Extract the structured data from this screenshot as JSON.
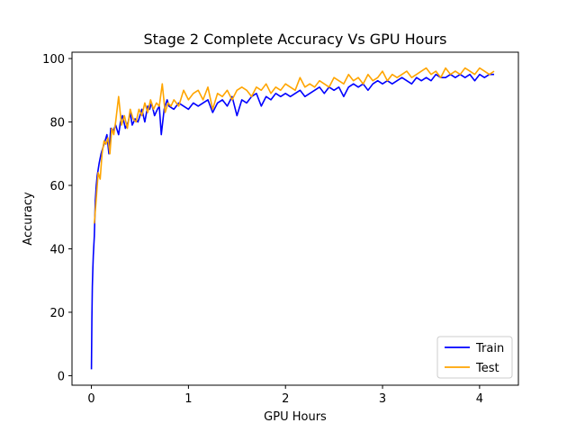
{
  "chart_data": {
    "type": "line",
    "title": "Stage 2 Complete Accuracy Vs GPU Hours",
    "xlabel": "GPU Hours",
    "ylabel": "Accuracy",
    "xlim": [
      -0.2,
      4.4
    ],
    "ylim": [
      -3,
      102
    ],
    "xticks": [
      0,
      1,
      2,
      3,
      4
    ],
    "yticks": [
      0,
      20,
      40,
      60,
      80,
      100
    ],
    "grid": false,
    "legend": "bottom-right",
    "series": [
      {
        "name": "Train",
        "color": "#0000ff",
        "x": [
          0.0,
          0.005,
          0.01,
          0.015,
          0.02,
          0.03,
          0.04,
          0.05,
          0.06,
          0.08,
          0.1,
          0.12,
          0.14,
          0.16,
          0.18,
          0.2,
          0.22,
          0.25,
          0.28,
          0.3,
          0.32,
          0.35,
          0.38,
          0.4,
          0.42,
          0.45,
          0.48,
          0.5,
          0.52,
          0.55,
          0.58,
          0.6,
          0.62,
          0.65,
          0.68,
          0.7,
          0.72,
          0.75,
          0.78,
          0.8,
          0.85,
          0.9,
          0.95,
          1.0,
          1.05,
          1.1,
          1.15,
          1.2,
          1.25,
          1.3,
          1.35,
          1.4,
          1.45,
          1.5,
          1.55,
          1.6,
          1.65,
          1.7,
          1.75,
          1.8,
          1.85,
          1.9,
          1.95,
          2.0,
          2.05,
          2.1,
          2.15,
          2.2,
          2.25,
          2.3,
          2.35,
          2.4,
          2.45,
          2.5,
          2.55,
          2.6,
          2.65,
          2.7,
          2.75,
          2.8,
          2.85,
          2.9,
          2.95,
          3.0,
          3.05,
          3.1,
          3.15,
          3.2,
          3.25,
          3.3,
          3.35,
          3.4,
          3.45,
          3.5,
          3.55,
          3.6,
          3.65,
          3.7,
          3.75,
          3.8,
          3.85,
          3.9,
          3.95,
          4.0,
          4.05,
          4.1,
          4.15
        ],
        "y": [
          2,
          18,
          28,
          34,
          38,
          44,
          55,
          60,
          63,
          67,
          70,
          72,
          74,
          76,
          70,
          78,
          77,
          79,
          76,
          80,
          82,
          78,
          80,
          83,
          79,
          81,
          80,
          82,
          84,
          80,
          85,
          84,
          86,
          82,
          84,
          85,
          76,
          84,
          87,
          85,
          84,
          86,
          85,
          84,
          86,
          85,
          86,
          87,
          83,
          86,
          87,
          85,
          88,
          82,
          87,
          86,
          88,
          89,
          85,
          88,
          87,
          89,
          88,
          89,
          88,
          89,
          90,
          88,
          89,
          90,
          91,
          89,
          91,
          90,
          91,
          88,
          91,
          92,
          91,
          92,
          90,
          92,
          93,
          92,
          93,
          92,
          93,
          94,
          93,
          92,
          94,
          93,
          94,
          93,
          95,
          94,
          94,
          95,
          94,
          95,
          94,
          95,
          93,
          95,
          94,
          95,
          95
        ]
      },
      {
        "name": "Test",
        "color": "#ffa500",
        "x": [
          0.03,
          0.05,
          0.07,
          0.09,
          0.11,
          0.13,
          0.15,
          0.17,
          0.19,
          0.21,
          0.23,
          0.25,
          0.28,
          0.31,
          0.34,
          0.37,
          0.4,
          0.43,
          0.46,
          0.49,
          0.52,
          0.55,
          0.58,
          0.61,
          0.64,
          0.67,
          0.7,
          0.73,
          0.76,
          0.79,
          0.82,
          0.85,
          0.9,
          0.95,
          1.0,
          1.05,
          1.1,
          1.15,
          1.2,
          1.25,
          1.3,
          1.35,
          1.4,
          1.45,
          1.5,
          1.55,
          1.6,
          1.65,
          1.7,
          1.75,
          1.8,
          1.85,
          1.9,
          1.95,
          2.0,
          2.05,
          2.1,
          2.15,
          2.2,
          2.25,
          2.3,
          2.35,
          2.4,
          2.45,
          2.5,
          2.55,
          2.6,
          2.65,
          2.7,
          2.75,
          2.8,
          2.85,
          2.9,
          2.95,
          3.0,
          3.05,
          3.1,
          3.15,
          3.2,
          3.25,
          3.3,
          3.35,
          3.4,
          3.45,
          3.5,
          3.55,
          3.6,
          3.65,
          3.7,
          3.75,
          3.8,
          3.85,
          3.9,
          3.95,
          4.0,
          4.05,
          4.1,
          4.15
        ],
        "y": [
          48,
          56,
          64,
          62,
          70,
          74,
          73,
          75,
          70,
          78,
          76,
          80,
          88,
          79,
          82,
          78,
          84,
          81,
          80,
          84,
          82,
          86,
          83,
          87,
          84,
          86,
          85,
          92,
          83,
          86,
          85,
          87,
          85,
          90,
          87,
          89,
          90,
          87,
          91,
          84,
          89,
          88,
          90,
          87,
          90,
          91,
          90,
          88,
          91,
          90,
          92,
          89,
          91,
          90,
          92,
          91,
          90,
          94,
          91,
          92,
          91,
          93,
          92,
          91,
          94,
          93,
          92,
          95,
          93,
          94,
          92,
          95,
          93,
          94,
          96,
          93,
          95,
          94,
          95,
          96,
          94,
          95,
          96,
          97,
          95,
          96,
          94,
          97,
          95,
          96,
          95,
          97,
          96,
          95,
          97,
          96,
          95,
          96
        ]
      }
    ]
  }
}
